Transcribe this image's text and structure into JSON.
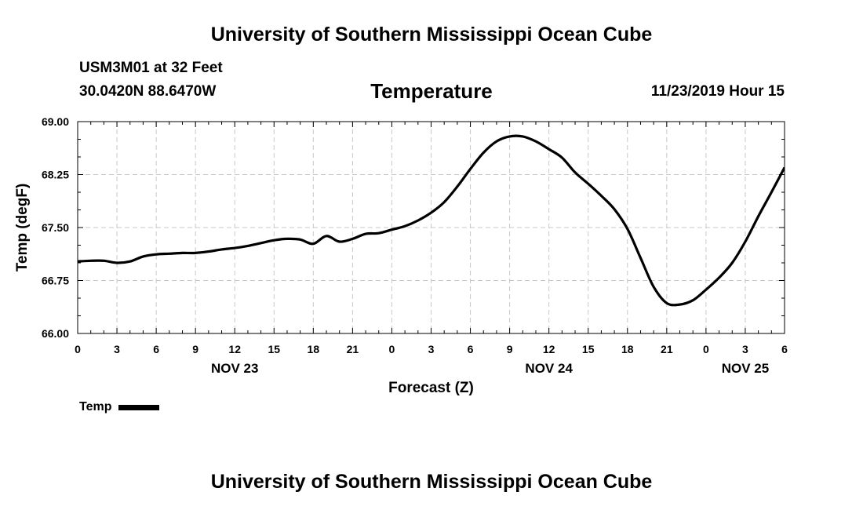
{
  "header": {
    "title": "University of Southern Mississippi Ocean Cube",
    "station": "USM3M01 at 32 Feet",
    "coords": "30.0420N 88.6470W",
    "parameter": "Temperature",
    "timestamp": "11/23/2019 Hour 15"
  },
  "footer": {
    "title": "University of Southern Mississippi Ocean Cube"
  },
  "legend": {
    "label": "Temp",
    "color": "#000000"
  },
  "chart_data": {
    "type": "line",
    "title": "Temperature",
    "xlabel": "Forecast (Z)",
    "ylabel": "Temp (degF)",
    "ylim": [
      66.0,
      69.0
    ],
    "xlim": [
      0,
      54
    ],
    "y_ticks": [
      "66.00",
      "66.75",
      "67.50",
      "68.25",
      "69.00"
    ],
    "y_tick_values": [
      66.0,
      66.75,
      67.5,
      68.25,
      69.0
    ],
    "x_ticks": [
      "0",
      "3",
      "6",
      "9",
      "12",
      "15",
      "18",
      "21",
      "0",
      "3",
      "6",
      "9",
      "12",
      "15",
      "18",
      "21",
      "0",
      "3",
      "6"
    ],
    "date_labels": [
      {
        "label": "NOV 23",
        "hour": 12
      },
      {
        "label": "NOV 24",
        "hour": 36
      },
      {
        "label": "NOV 25",
        "hour": 51
      }
    ],
    "grid": true,
    "series": [
      {
        "name": "Temp",
        "color": "#000000",
        "x": [
          0,
          1,
          2,
          3,
          4,
          5,
          6,
          7,
          8,
          9,
          10,
          11,
          12,
          13,
          14,
          15,
          16,
          17,
          18,
          19,
          20,
          21,
          22,
          23,
          24,
          25,
          26,
          27,
          28,
          29,
          30,
          31,
          32,
          33,
          34,
          35,
          36,
          37,
          38,
          39,
          40,
          41,
          42,
          43,
          44,
          45,
          46,
          47,
          48,
          49,
          50,
          51,
          52,
          53,
          54
        ],
        "values": [
          67.02,
          67.03,
          67.03,
          67.0,
          67.02,
          67.09,
          67.12,
          67.13,
          67.14,
          67.14,
          67.16,
          67.19,
          67.21,
          67.24,
          67.28,
          67.32,
          67.34,
          67.33,
          67.27,
          67.38,
          67.3,
          67.34,
          67.41,
          67.42,
          67.47,
          67.52,
          67.6,
          67.71,
          67.86,
          68.08,
          68.33,
          68.56,
          68.72,
          68.79,
          68.79,
          68.72,
          68.61,
          68.49,
          68.28,
          68.12,
          67.95,
          67.76,
          67.48,
          67.07,
          66.66,
          66.43,
          66.41,
          66.47,
          66.62,
          66.79,
          67.0,
          67.3,
          67.66,
          68.0,
          68.35
        ]
      }
    ]
  }
}
